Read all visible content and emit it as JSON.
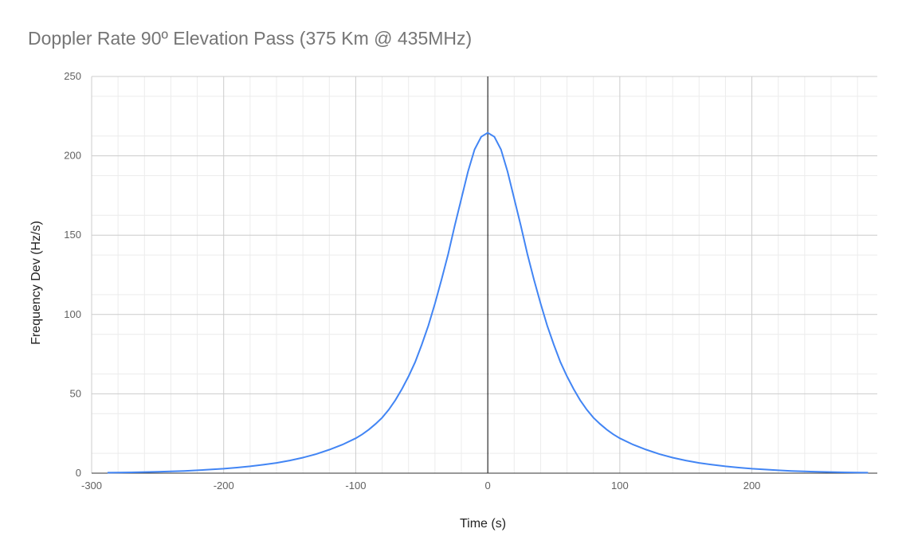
{
  "chart_data": {
    "type": "line",
    "title": "Doppler Rate 90º Elevation Pass (375 Km @ 435MHz)",
    "xlabel": "Time (s)",
    "ylabel": "Frequency Dev (Hz/s)",
    "xlim": [
      -300,
      295
    ],
    "ylim": [
      0,
      250
    ],
    "x_ticks": [
      "-300",
      "-200",
      "-100",
      "0",
      "100",
      "200"
    ],
    "y_ticks": [
      "0",
      "50",
      "100",
      "150",
      "200",
      "250"
    ],
    "grid": true,
    "legend": "none",
    "series": [
      {
        "color": "#4285f4",
        "points": [
          [
            -288,
            0.3
          ],
          [
            -280,
            0.4
          ],
          [
            -270,
            0.5
          ],
          [
            -260,
            0.7
          ],
          [
            -250,
            0.9
          ],
          [
            -240,
            1.1
          ],
          [
            -230,
            1.4
          ],
          [
            -220,
            1.8
          ],
          [
            -210,
            2.3
          ],
          [
            -200,
            2.8
          ],
          [
            -190,
            3.5
          ],
          [
            -180,
            4.3
          ],
          [
            -170,
            5.3
          ],
          [
            -160,
            6.5
          ],
          [
            -150,
            8.0
          ],
          [
            -140,
            9.8
          ],
          [
            -130,
            12.0
          ],
          [
            -120,
            14.8
          ],
          [
            -110,
            18.0
          ],
          [
            -100,
            22.0
          ],
          [
            -95,
            24.5
          ],
          [
            -90,
            27.5
          ],
          [
            -85,
            31.0
          ],
          [
            -80,
            35.0
          ],
          [
            -75,
            40.0
          ],
          [
            -70,
            46.0
          ],
          [
            -65,
            53.0
          ],
          [
            -60,
            61.0
          ],
          [
            -55,
            70.0
          ],
          [
            -50,
            81.0
          ],
          [
            -45,
            93.0
          ],
          [
            -40,
            107.0
          ],
          [
            -35,
            122.0
          ],
          [
            -30,
            138.0
          ],
          [
            -25,
            156.0
          ],
          [
            -20,
            173.0
          ],
          [
            -15,
            190.0
          ],
          [
            -10,
            204.0
          ],
          [
            -5,
            212.0
          ],
          [
            0,
            214.5
          ],
          [
            5,
            212.0
          ],
          [
            10,
            204.0
          ],
          [
            15,
            190.0
          ],
          [
            20,
            173.0
          ],
          [
            25,
            156.0
          ],
          [
            30,
            138.0
          ],
          [
            35,
            122.0
          ],
          [
            40,
            107.0
          ],
          [
            45,
            93.0
          ],
          [
            50,
            81.0
          ],
          [
            55,
            70.0
          ],
          [
            60,
            61.0
          ],
          [
            65,
            53.0
          ],
          [
            70,
            46.0
          ],
          [
            75,
            40.0
          ],
          [
            80,
            35.0
          ],
          [
            85,
            31.0
          ],
          [
            90,
            27.5
          ],
          [
            95,
            24.5
          ],
          [
            100,
            22.0
          ],
          [
            110,
            18.0
          ],
          [
            120,
            14.8
          ],
          [
            130,
            12.0
          ],
          [
            140,
            9.8
          ],
          [
            150,
            8.0
          ],
          [
            160,
            6.5
          ],
          [
            170,
            5.3
          ],
          [
            180,
            4.3
          ],
          [
            190,
            3.5
          ],
          [
            200,
            2.8
          ],
          [
            210,
            2.3
          ],
          [
            220,
            1.8
          ],
          [
            230,
            1.4
          ],
          [
            240,
            1.1
          ],
          [
            250,
            0.9
          ],
          [
            260,
            0.7
          ],
          [
            270,
            0.5
          ],
          [
            280,
            0.4
          ],
          [
            288,
            0.3
          ]
        ]
      }
    ]
  }
}
